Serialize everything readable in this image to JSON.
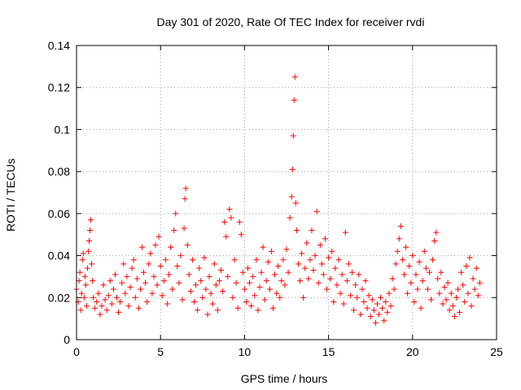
{
  "chart_data": {
    "type": "scatter",
    "title": "Day 301 of 2020, Rate Of TEC Index for receiver rvdi",
    "xlabel": "GPS time / hours",
    "ylabel": "ROTI / TECUs",
    "xlim": [
      0,
      25
    ],
    "ylim": [
      0,
      0.14
    ],
    "x_ticks": [
      0,
      5,
      10,
      15,
      20,
      25
    ],
    "y_ticks": [
      0,
      0.02,
      0.04,
      0.06,
      0.08,
      0.1,
      0.12,
      0.14
    ],
    "x_tick_labels": [
      "0",
      "5",
      "10",
      "15",
      "20",
      "25"
    ],
    "y_tick_labels": [
      "0",
      "0.02",
      "0.04",
      "0.06",
      "0.08",
      "0.1",
      "0.12",
      "0.14"
    ],
    "grid": true,
    "marker": "plus",
    "color": "#ff0000",
    "points": [
      [
        0.0,
        0.024
      ],
      [
        0.1,
        0.018
      ],
      [
        0.15,
        0.028
      ],
      [
        0.2,
        0.032
      ],
      [
        0.25,
        0.014
      ],
      [
        0.3,
        0.022
      ],
      [
        0.35,
        0.038
      ],
      [
        0.4,
        0.041
      ],
      [
        0.45,
        0.02
      ],
      [
        0.5,
        0.03
      ],
      [
        0.55,
        0.026
      ],
      [
        0.6,
        0.016
      ],
      [
        0.65,
        0.034
      ],
      [
        0.7,
        0.042
      ],
      [
        0.75,
        0.047
      ],
      [
        0.8,
        0.052
      ],
      [
        0.85,
        0.057
      ],
      [
        0.9,
        0.036
      ],
      [
        0.95,
        0.028
      ],
      [
        1.0,
        0.02
      ],
      [
        1.1,
        0.015
      ],
      [
        1.2,
        0.018
      ],
      [
        1.3,
        0.022
      ],
      [
        1.4,
        0.012
      ],
      [
        1.5,
        0.016
      ],
      [
        1.6,
        0.026
      ],
      [
        1.7,
        0.019
      ],
      [
        1.8,
        0.014
      ],
      [
        1.9,
        0.021
      ],
      [
        2.0,
        0.028
      ],
      [
        2.1,
        0.017
      ],
      [
        2.2,
        0.024
      ],
      [
        2.3,
        0.031
      ],
      [
        2.4,
        0.02
      ],
      [
        2.5,
        0.013
      ],
      [
        2.6,
        0.018
      ],
      [
        2.7,
        0.027
      ],
      [
        2.8,
        0.036
      ],
      [
        2.9,
        0.022
      ],
      [
        3.0,
        0.03
      ],
      [
        3.1,
        0.016
      ],
      [
        3.2,
        0.025
      ],
      [
        3.3,
        0.034
      ],
      [
        3.4,
        0.038
      ],
      [
        3.5,
        0.02
      ],
      [
        3.6,
        0.029
      ],
      [
        3.7,
        0.015
      ],
      [
        3.8,
        0.024
      ],
      [
        3.9,
        0.044
      ],
      [
        4.0,
        0.032
      ],
      [
        4.1,
        0.027
      ],
      [
        4.2,
        0.018
      ],
      [
        4.3,
        0.036
      ],
      [
        4.4,
        0.041
      ],
      [
        4.5,
        0.022
      ],
      [
        4.6,
        0.03
      ],
      [
        4.7,
        0.045
      ],
      [
        4.8,
        0.026
      ],
      [
        4.9,
        0.049
      ],
      [
        5.0,
        0.035
      ],
      [
        5.1,
        0.021
      ],
      [
        5.2,
        0.028
      ],
      [
        5.3,
        0.038
      ],
      [
        5.4,
        0.017
      ],
      [
        5.5,
        0.031
      ],
      [
        5.6,
        0.044
      ],
      [
        5.7,
        0.024
      ],
      [
        5.8,
        0.052
      ],
      [
        5.9,
        0.06
      ],
      [
        6.0,
        0.035
      ],
      [
        6.1,
        0.027
      ],
      [
        6.2,
        0.04
      ],
      [
        6.3,
        0.019
      ],
      [
        6.4,
        0.053
      ],
      [
        6.45,
        0.067
      ],
      [
        6.5,
        0.072
      ],
      [
        6.6,
        0.045
      ],
      [
        6.7,
        0.031
      ],
      [
        6.8,
        0.023
      ],
      [
        6.9,
        0.038
      ],
      [
        7.0,
        0.018
      ],
      [
        7.1,
        0.026
      ],
      [
        7.2,
        0.014
      ],
      [
        7.3,
        0.034
      ],
      [
        7.4,
        0.028
      ],
      [
        7.5,
        0.02
      ],
      [
        7.6,
        0.039
      ],
      [
        7.7,
        0.024
      ],
      [
        7.8,
        0.012
      ],
      [
        7.9,
        0.03
      ],
      [
        8.0,
        0.022
      ],
      [
        8.1,
        0.017
      ],
      [
        8.2,
        0.036
      ],
      [
        8.3,
        0.026
      ],
      [
        8.4,
        0.014
      ],
      [
        8.5,
        0.028
      ],
      [
        8.6,
        0.033
      ],
      [
        8.7,
        0.023
      ],
      [
        8.8,
        0.056
      ],
      [
        8.9,
        0.049
      ],
      [
        9.0,
        0.03
      ],
      [
        9.1,
        0.062
      ],
      [
        9.2,
        0.058
      ],
      [
        9.3,
        0.02
      ],
      [
        9.4,
        0.038
      ],
      [
        9.5,
        0.027
      ],
      [
        9.6,
        0.015
      ],
      [
        9.7,
        0.056
      ],
      [
        9.8,
        0.05
      ],
      [
        9.9,
        0.032
      ],
      [
        10.0,
        0.024
      ],
      [
        10.1,
        0.018
      ],
      [
        10.2,
        0.034
      ],
      [
        10.3,
        0.027
      ],
      [
        10.4,
        0.016
      ],
      [
        10.5,
        0.03
      ],
      [
        10.6,
        0.021
      ],
      [
        10.7,
        0.038
      ],
      [
        10.8,
        0.014
      ],
      [
        10.9,
        0.025
      ],
      [
        11.0,
        0.032
      ],
      [
        11.1,
        0.044
      ],
      [
        11.2,
        0.019
      ],
      [
        11.3,
        0.028
      ],
      [
        11.4,
        0.037
      ],
      [
        11.5,
        0.024
      ],
      [
        11.6,
        0.042
      ],
      [
        11.7,
        0.015
      ],
      [
        11.8,
        0.031
      ],
      [
        11.9,
        0.022
      ],
      [
        12.0,
        0.035
      ],
      [
        12.1,
        0.02
      ],
      [
        12.2,
        0.028
      ],
      [
        12.3,
        0.038
      ],
      [
        12.4,
        0.026
      ],
      [
        12.5,
        0.043
      ],
      [
        12.6,
        0.032
      ],
      [
        12.7,
        0.058
      ],
      [
        12.8,
        0.068
      ],
      [
        12.85,
        0.081
      ],
      [
        12.9,
        0.097
      ],
      [
        12.95,
        0.114
      ],
      [
        13.0,
        0.125
      ],
      [
        13.05,
        0.065
      ],
      [
        13.1,
        0.052
      ],
      [
        13.2,
        0.036
      ],
      [
        13.3,
        0.028
      ],
      [
        13.4,
        0.041
      ],
      [
        13.5,
        0.02
      ],
      [
        13.6,
        0.034
      ],
      [
        13.7,
        0.046
      ],
      [
        13.8,
        0.029
      ],
      [
        13.9,
        0.038
      ],
      [
        14.0,
        0.052
      ],
      [
        14.1,
        0.033
      ],
      [
        14.2,
        0.04
      ],
      [
        14.3,
        0.061
      ],
      [
        14.4,
        0.027
      ],
      [
        14.5,
        0.045
      ],
      [
        14.6,
        0.036
      ],
      [
        14.7,
        0.031
      ],
      [
        14.8,
        0.048
      ],
      [
        14.9,
        0.024
      ],
      [
        15.0,
        0.039
      ],
      [
        15.1,
        0.029
      ],
      [
        15.2,
        0.042
      ],
      [
        15.3,
        0.018
      ],
      [
        15.4,
        0.034
      ],
      [
        15.5,
        0.026
      ],
      [
        15.6,
        0.038
      ],
      [
        15.7,
        0.022
      ],
      [
        15.8,
        0.031
      ],
      [
        15.9,
        0.017
      ],
      [
        16.0,
        0.051
      ],
      [
        16.1,
        0.028
      ],
      [
        16.2,
        0.036
      ],
      [
        16.3,
        0.021
      ],
      [
        16.4,
        0.032
      ],
      [
        16.5,
        0.014
      ],
      [
        16.6,
        0.026
      ],
      [
        16.7,
        0.02
      ],
      [
        16.8,
        0.031
      ],
      [
        16.9,
        0.012
      ],
      [
        17.0,
        0.024
      ],
      [
        17.1,
        0.018
      ],
      [
        17.2,
        0.028
      ],
      [
        17.3,
        0.015
      ],
      [
        17.4,
        0.021
      ],
      [
        17.5,
        0.011
      ],
      [
        17.6,
        0.019
      ],
      [
        17.7,
        0.014
      ],
      [
        17.8,
        0.008
      ],
      [
        17.9,
        0.017
      ],
      [
        18.0,
        0.012
      ],
      [
        18.1,
        0.02
      ],
      [
        18.2,
        0.015
      ],
      [
        18.3,
        0.009
      ],
      [
        18.4,
        0.018
      ],
      [
        18.5,
        0.013
      ],
      [
        18.6,
        0.022
      ],
      [
        18.7,
        0.016
      ],
      [
        18.8,
        0.029
      ],
      [
        18.9,
        0.024
      ],
      [
        19.0,
        0.036
      ],
      [
        19.1,
        0.042
      ],
      [
        19.2,
        0.048
      ],
      [
        19.3,
        0.054
      ],
      [
        19.4,
        0.038
      ],
      [
        19.5,
        0.031
      ],
      [
        19.6,
        0.044
      ],
      [
        19.7,
        0.022
      ],
      [
        19.8,
        0.035
      ],
      [
        19.9,
        0.027
      ],
      [
        20.0,
        0.04
      ],
      [
        20.1,
        0.018
      ],
      [
        20.2,
        0.031
      ],
      [
        20.3,
        0.024
      ],
      [
        20.4,
        0.037
      ],
      [
        20.5,
        0.015
      ],
      [
        20.6,
        0.028
      ],
      [
        20.7,
        0.042
      ],
      [
        20.8,
        0.034
      ],
      [
        20.9,
        0.024
      ],
      [
        21.0,
        0.032
      ],
      [
        21.1,
        0.019
      ],
      [
        21.2,
        0.038
      ],
      [
        21.3,
        0.047
      ],
      [
        21.4,
        0.051
      ],
      [
        21.5,
        0.029
      ],
      [
        21.6,
        0.022
      ],
      [
        21.7,
        0.032
      ],
      [
        21.8,
        0.017
      ],
      [
        21.9,
        0.025
      ],
      [
        22.0,
        0.019
      ],
      [
        22.1,
        0.027
      ],
      [
        22.2,
        0.014
      ],
      [
        22.3,
        0.022
      ],
      [
        22.4,
        0.016
      ],
      [
        22.5,
        0.011
      ],
      [
        22.6,
        0.02
      ],
      [
        22.7,
        0.024
      ],
      [
        22.8,
        0.013
      ],
      [
        22.9,
        0.032
      ],
      [
        23.0,
        0.026
      ],
      [
        23.1,
        0.018
      ],
      [
        23.2,
        0.035
      ],
      [
        23.3,
        0.022
      ],
      [
        23.4,
        0.039
      ],
      [
        23.5,
        0.016
      ],
      [
        23.6,
        0.029
      ],
      [
        23.7,
        0.024
      ],
      [
        23.8,
        0.034
      ],
      [
        23.9,
        0.021
      ],
      [
        24.0,
        0.027
      ]
    ]
  }
}
